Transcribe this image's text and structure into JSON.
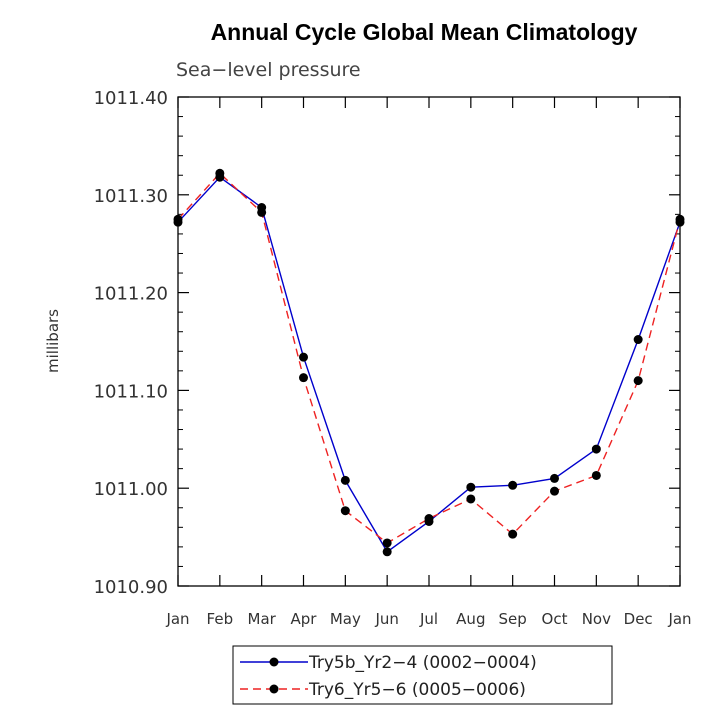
{
  "chart_data": {
    "type": "line",
    "title": "Annual Cycle Global Mean Climatology",
    "subtitle": "Sea−level pressure",
    "xlabel": "",
    "ylabel": "millibars",
    "categories": [
      "Jan",
      "Feb",
      "Mar",
      "Apr",
      "May",
      "Jun",
      "Jul",
      "Aug",
      "Sep",
      "Oct",
      "Nov",
      "Dec",
      "Jan"
    ],
    "ylim": [
      1010.9,
      1011.4
    ],
    "yticks": [
      1010.9,
      1011.0,
      1011.1,
      1011.2,
      1011.3,
      1011.4
    ],
    "yticklabels": [
      "1010.90",
      "1011.00",
      "1011.10",
      "1011.20",
      "1011.30",
      "1011.40"
    ],
    "grid": false,
    "legend_position": "bottom-center",
    "series": [
      {
        "name": "Try5b_Yr2−4 (0002−0004)",
        "color": "#0000cc",
        "dash": "solid",
        "values": [
          1011.272,
          1011.318,
          1011.287,
          1011.134,
          1011.008,
          1010.935,
          1010.966,
          1011.001,
          1011.003,
          1011.01,
          1011.04,
          1011.152,
          1011.272
        ]
      },
      {
        "name": "Try6_Yr5−6 (0005−0006)",
        "color": "#ee2222",
        "dash": "dashed",
        "values": [
          1011.275,
          1011.322,
          1011.282,
          1011.113,
          1010.977,
          1010.944,
          1010.969,
          1010.989,
          1010.953,
          1010.997,
          1011.013,
          1011.11,
          1011.275
        ]
      }
    ]
  }
}
